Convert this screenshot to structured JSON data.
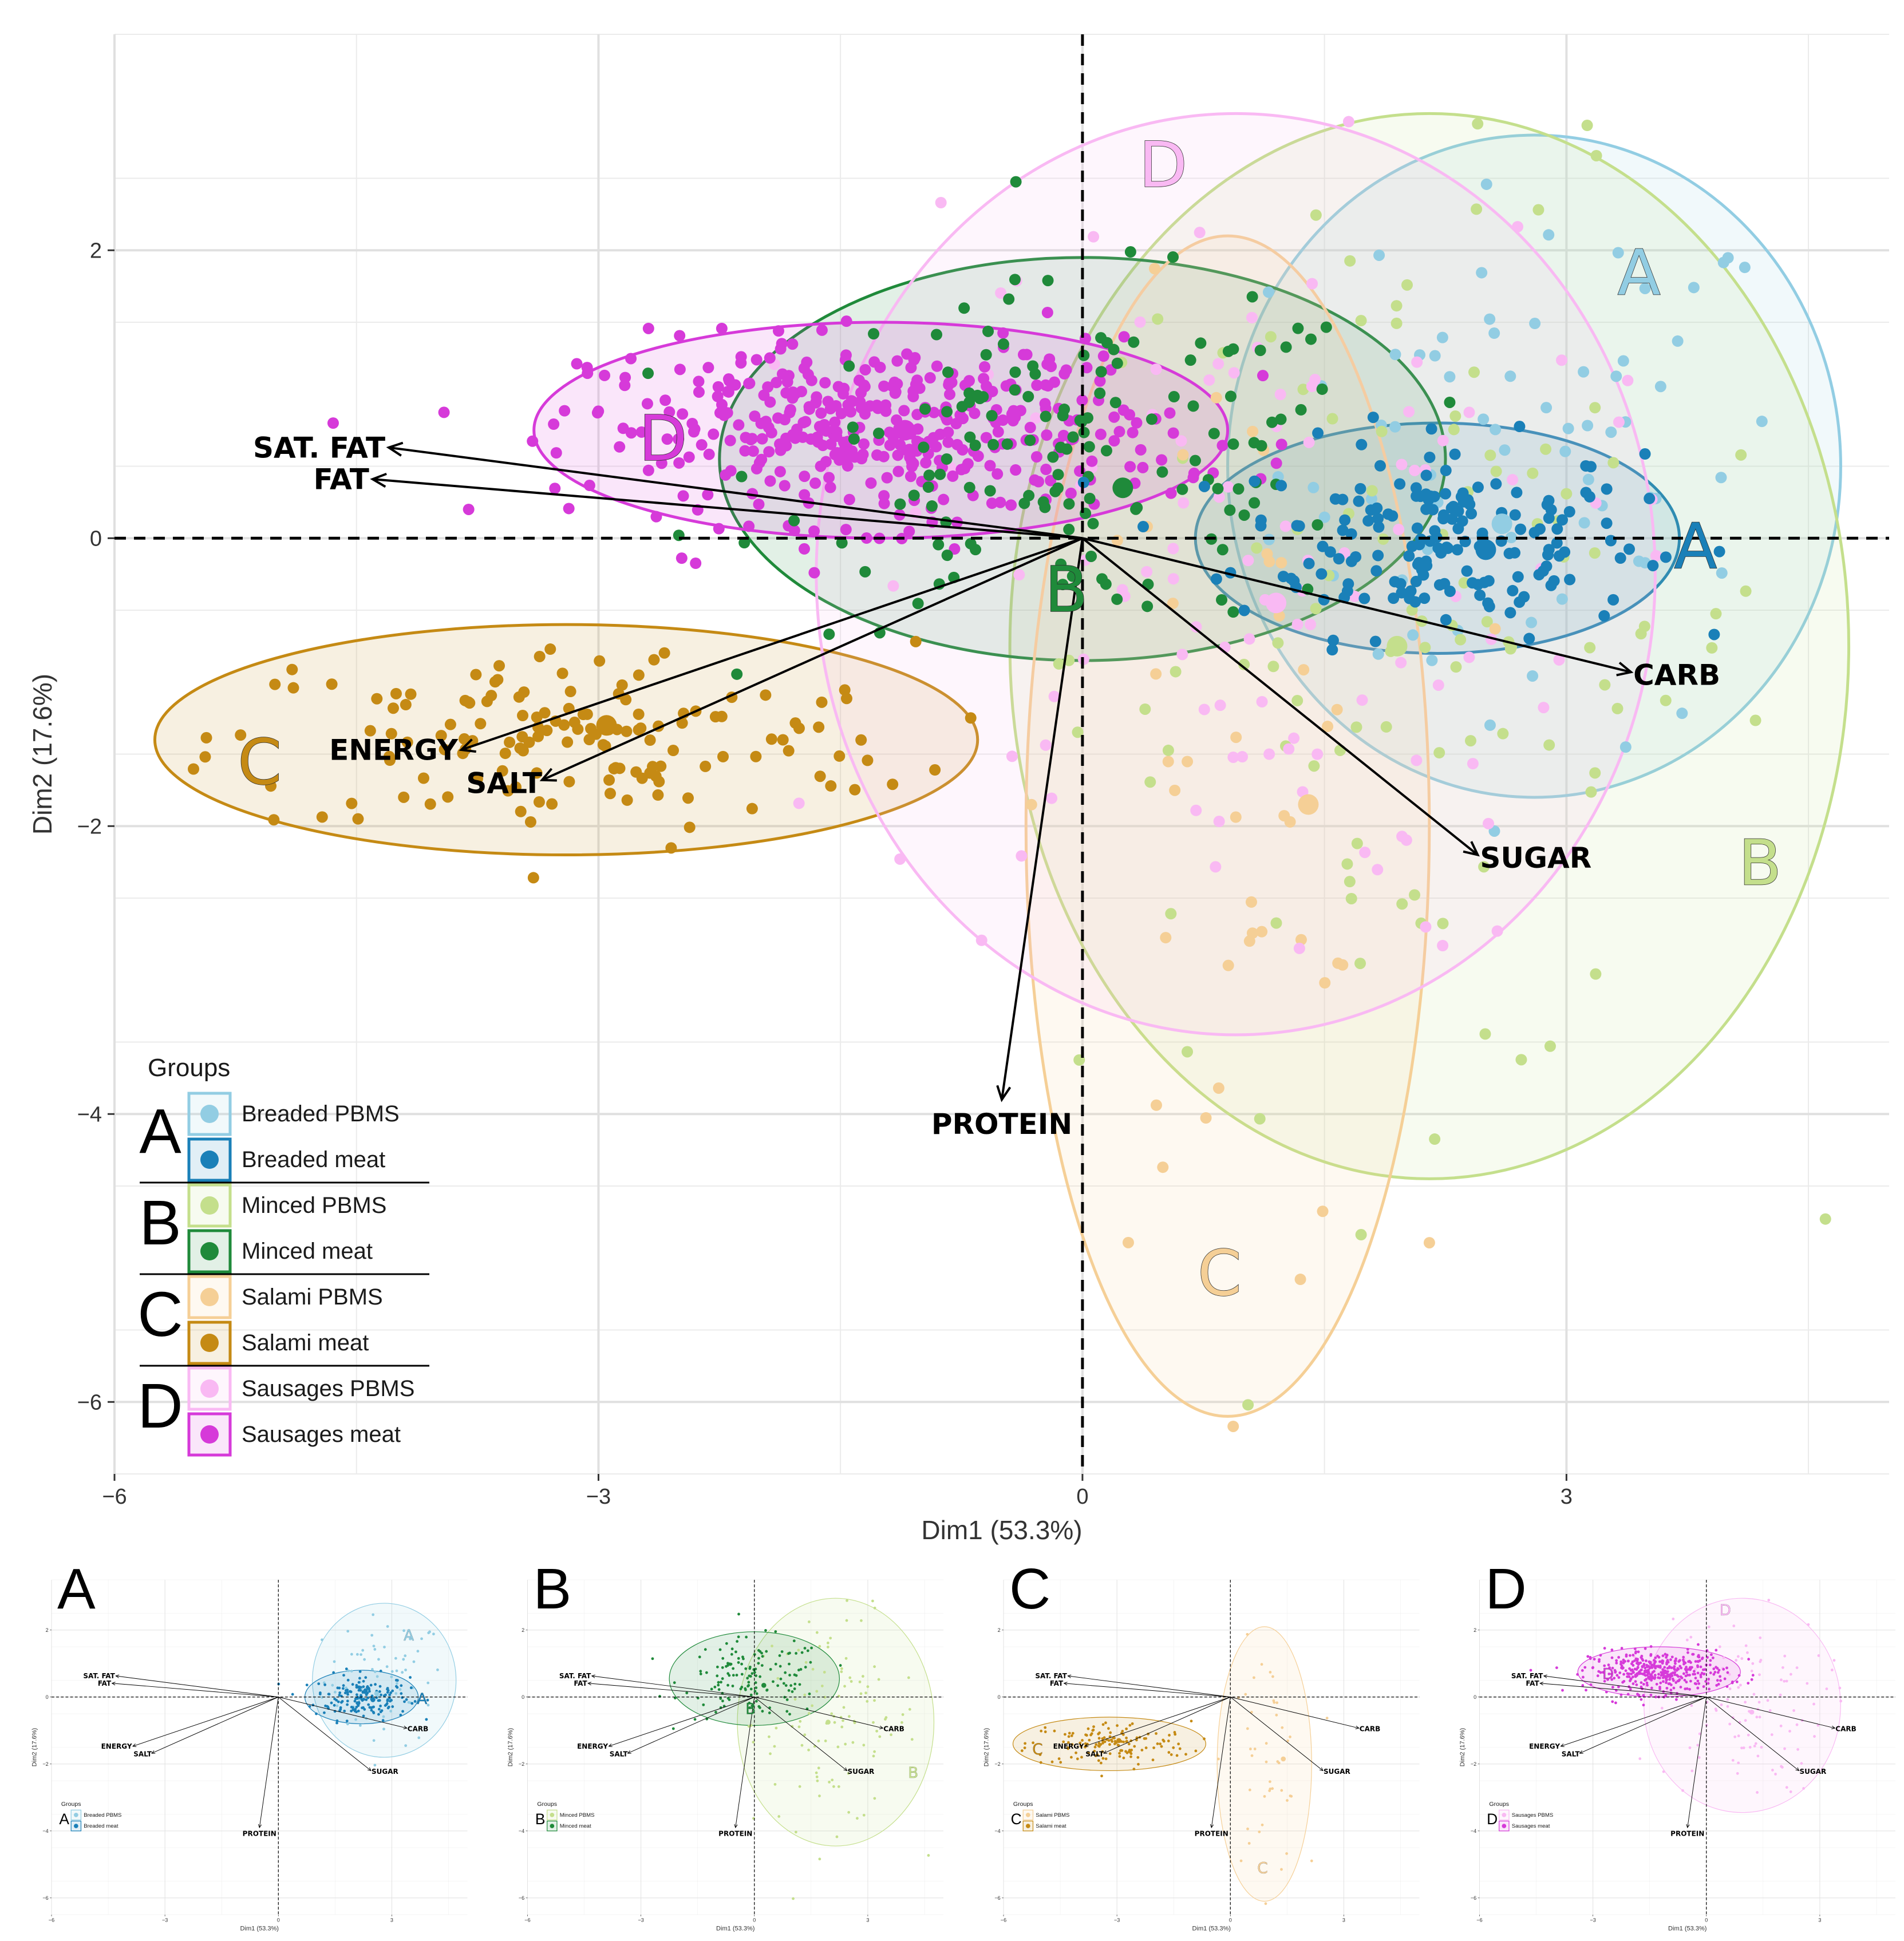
{
  "chart_data": {
    "type": "scatter",
    "title": "",
    "xlabel": "Dim1 (53.3%)",
    "ylabel": "Dim2 (17.6%)",
    "xlim": [
      -6,
      5
    ],
    "ylim": [
      -6.5,
      3.5
    ],
    "xticks": [
      -6,
      -3,
      0,
      3
    ],
    "yticks": [
      -6,
      -4,
      -2,
      0,
      2
    ],
    "xtick_labels": [
      "−6",
      "−3",
      "0",
      "3"
    ],
    "ytick_labels": [
      "−6",
      "−4",
      "−2",
      "0",
      "2"
    ],
    "legend": {
      "title": "Groups",
      "position": "bottom-left",
      "groups": [
        {
          "letter": "A",
          "entries": [
            {
              "label": "Breaded PBMS",
              "color": "#92cde3"
            },
            {
              "label": "Breaded meat",
              "color": "#1a80b8"
            }
          ]
        },
        {
          "letter": "B",
          "entries": [
            {
              "label": "Minced PBMS",
              "color": "#c4df8c"
            },
            {
              "label": "Minced meat",
              "color": "#1f8a3a"
            }
          ]
        },
        {
          "letter": "C",
          "entries": [
            {
              "label": "Salami PBMS",
              "color": "#f5cf96"
            },
            {
              "label": "Salami meat",
              "color": "#c58a14"
            }
          ]
        },
        {
          "letter": "D",
          "entries": [
            {
              "label": "Sausages PBMS",
              "color": "#f9b9f3"
            },
            {
              "label": "Sausages meat",
              "color": "#d63ad9"
            }
          ]
        }
      ]
    },
    "loadings": [
      {
        "name": "SAT. FAT",
        "x": -4.3,
        "y": 0.63
      },
      {
        "name": "FAT",
        "x": -4.4,
        "y": 0.41
      },
      {
        "name": "ENERGY",
        "x": -3.85,
        "y": -1.47
      },
      {
        "name": "SALT",
        "x": -3.35,
        "y": -1.68
      },
      {
        "name": "PROTEIN",
        "x": -0.5,
        "y": -3.9
      },
      {
        "name": "CARB",
        "x": 3.4,
        "y": -0.93
      },
      {
        "name": "SUGAR",
        "x": 2.45,
        "y": -2.2
      }
    ],
    "ellipses": [
      {
        "group": "A",
        "series": "Breaded PBMS",
        "cx": 2.8,
        "cy": 0.5,
        "rx": 1.9,
        "ry": 2.3,
        "angle": 0,
        "color": "#92cde3",
        "label": "A",
        "label_x": 3.45,
        "label_y": 1.85
      },
      {
        "group": "A",
        "series": "Breaded meat",
        "cx": 2.2,
        "cy": 0.0,
        "rx": 1.5,
        "ry": 0.8,
        "angle": 0,
        "color": "#1a80b8",
        "label": "A",
        "label_x": 3.8,
        "label_y": -0.05
      },
      {
        "group": "B",
        "series": "Minced PBMS",
        "cx": 2.15,
        "cy": -0.75,
        "rx": 2.6,
        "ry": 3.7,
        "angle": 0,
        "color": "#c4df8c",
        "label": "B",
        "label_x": 4.2,
        "label_y": -2.25
      },
      {
        "group": "B",
        "series": "Minced meat",
        "cx": 0.0,
        "cy": 0.55,
        "rx": 2.25,
        "ry": 1.4,
        "angle": 0,
        "color": "#1f8a3a",
        "label": "B",
        "label_x": -0.1,
        "label_y": -0.35
      },
      {
        "group": "C",
        "series": "Salami PBMS",
        "cx": 0.9,
        "cy": -2.0,
        "rx": 1.25,
        "ry": 4.1,
        "angle": 0,
        "color": "#f5cf96",
        "label": "C",
        "label_x": 0.85,
        "label_y": -5.1
      },
      {
        "group": "C",
        "series": "Salami meat",
        "cx": -3.2,
        "cy": -1.4,
        "rx": 2.55,
        "ry": 0.8,
        "angle": 0,
        "color": "#c58a14",
        "label": "C",
        "label_x": -5.1,
        "label_y": -1.55
      },
      {
        "group": "D",
        "series": "Sausages PBMS",
        "cx": 0.95,
        "cy": -0.25,
        "rx": 2.6,
        "ry": 3.2,
        "angle": 0,
        "color": "#f9b9f3",
        "label": "D",
        "label_x": 0.5,
        "label_y": 2.6
      },
      {
        "group": "D",
        "series": "Sausages meat",
        "cx": -1.25,
        "cy": 0.75,
        "rx": 2.15,
        "ry": 0.75,
        "angle": 0,
        "color": "#d63ad9",
        "label": "D",
        "label_x": -2.6,
        "label_y": 0.7
      }
    ],
    "centroids": [
      {
        "series": "Breaded PBMS",
        "x": 2.6,
        "y": 0.1,
        "color": "#92cde3"
      },
      {
        "series": "Breaded meat",
        "x": 2.5,
        "y": -0.08,
        "color": "#1a80b8"
      },
      {
        "series": "Minced PBMS",
        "x": 1.95,
        "y": -0.75,
        "color": "#c4df8c"
      },
      {
        "series": "Minced meat",
        "x": 0.25,
        "y": 0.35,
        "color": "#1f8a3a"
      },
      {
        "series": "Salami PBMS",
        "x": 1.4,
        "y": -1.85,
        "color": "#f5cf96"
      },
      {
        "series": "Salami meat",
        "x": -2.95,
        "y": -1.3,
        "color": "#c58a14"
      },
      {
        "series": "Sausages PBMS",
        "x": 1.2,
        "y": -0.45,
        "color": "#f9b9f3"
      },
      {
        "series": "Sausages meat",
        "x": -1.1,
        "y": 0.75,
        "color": "#d63ad9"
      }
    ],
    "point_counts": {
      "Breaded PBMS": 70,
      "Breaded meat": 180,
      "Minced PBMS": 110,
      "Minced meat": 150,
      "Salami PBMS": 45,
      "Salami meat": 150,
      "Sausages PBMS": 110,
      "Sausages meat": 420
    },
    "panels": [
      {
        "letter": "A",
        "groups": [
          "A"
        ],
        "legend_labels": [
          "Breaded PBMS",
          "Breaded meat"
        ]
      },
      {
        "letter": "B",
        "groups": [
          "B"
        ],
        "legend_labels": [
          "Minced PBMS",
          "Minced meat"
        ]
      },
      {
        "letter": "C",
        "groups": [
          "C"
        ],
        "legend_labels": [
          "Salami PBMS",
          "Salami meat"
        ]
      },
      {
        "letter": "D",
        "groups": [
          "D"
        ],
        "legend_labels": [
          "Sausages PBMS",
          "Sausages meat"
        ]
      }
    ]
  }
}
